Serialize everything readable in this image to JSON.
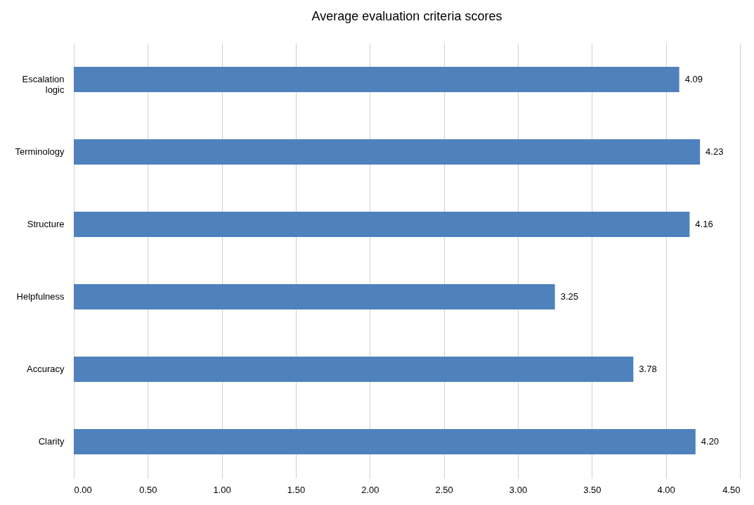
{
  "chart_data": {
    "type": "bar",
    "orientation": "horizontal",
    "title": "Average evaluation criteria scores",
    "categories": [
      "Escalation logic",
      "Terminology",
      "Structure",
      "Helpfulness",
      "Accuracy",
      "Clarity"
    ],
    "values": [
      4.09,
      4.23,
      4.16,
      3.25,
      3.78,
      4.2
    ],
    "value_labels": [
      "4.09",
      "4.23",
      "4.16",
      "3.25",
      "3.78",
      "4.20"
    ],
    "color": "#4f81bd",
    "xlim": [
      0,
      4.5
    ],
    "xticks": [
      {
        "value": 0,
        "label": "0.00"
      },
      {
        "value": 0.5,
        "label": "0.50"
      },
      {
        "value": 1,
        "label": "1.00"
      },
      {
        "value": 1.5,
        "label": "1.50"
      },
      {
        "value": 2,
        "label": "2.00"
      },
      {
        "value": 2.5,
        "label": "2.50"
      },
      {
        "value": 3,
        "label": "3.00"
      },
      {
        "value": 3.5,
        "label": "3.50"
      },
      {
        "value": 4,
        "label": "4.00"
      },
      {
        "value": 4.5,
        "label": "4.50"
      }
    ],
    "grid": "x"
  }
}
